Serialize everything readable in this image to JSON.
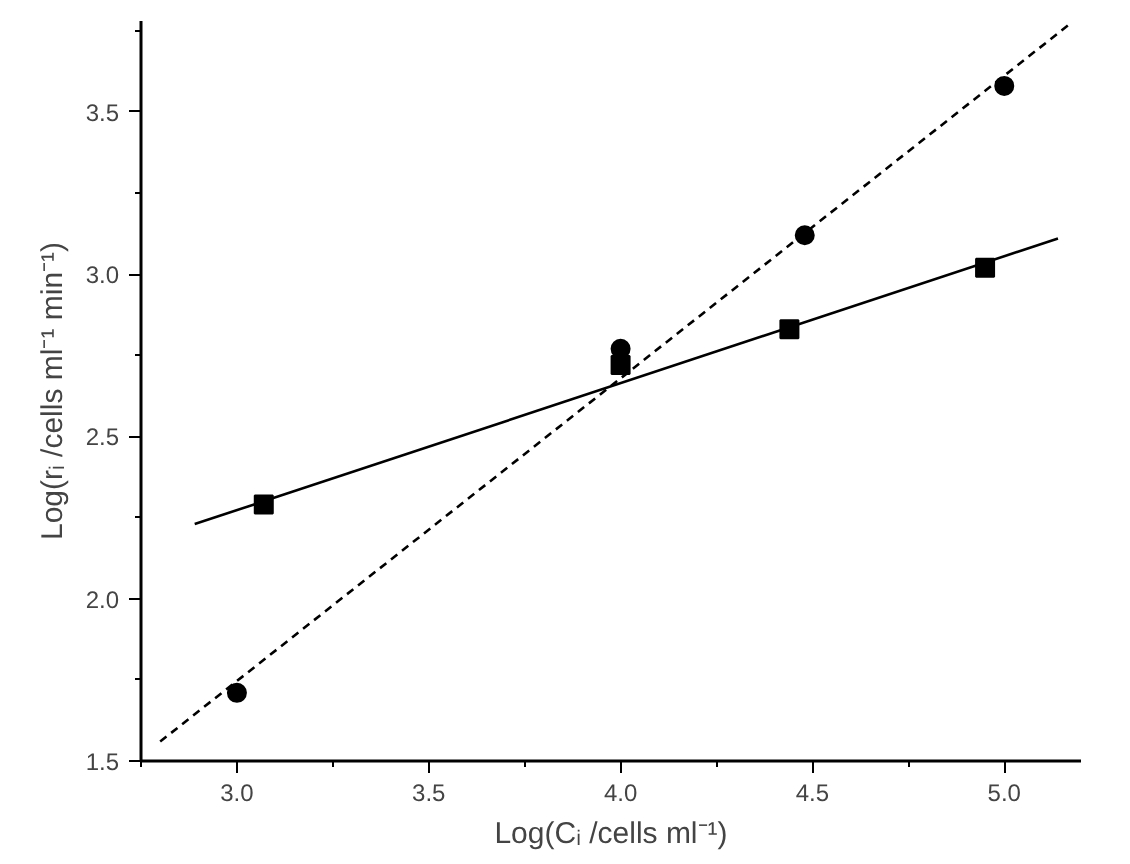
{
  "chart_data": {
    "type": "scatter",
    "xlabel": "Log(Cᵢ /cells ml⁻¹)",
    "ylabel": "Log(rᵢ /cells ml⁻¹ min⁻¹)",
    "xlim": [
      2.75,
      5.2
    ],
    "ylim": [
      1.5,
      3.78
    ],
    "xticks": [
      {
        "value": 3,
        "label": "3.0"
      },
      3.5,
      {
        "value": 4,
        "label": "4.0"
      },
      4.5,
      {
        "value": 5,
        "label": "5.0"
      }
    ],
    "yticks": [
      1.5,
      {
        "value": 2,
        "label": "2.0"
      },
      2.5,
      {
        "value": 3,
        "label": "3.0"
      },
      3.5
    ],
    "grid": false,
    "series": [
      {
        "marker": "square",
        "color": "#000000",
        "x": [
          3.07,
          4.0,
          4.44,
          4.95
        ],
        "values": [
          2.29,
          2.72,
          2.83,
          3.02
        ]
      },
      {
        "type": "scatter",
        "marker": "circle",
        "color": "#000000",
        "x": [
          3.0,
          4.0,
          4.48,
          5.0
        ],
        "values": [
          1.71,
          2.77,
          3.12,
          3.58
        ]
      },
      {
        "type": "line",
        "line_style": "solid",
        "color": "#000000",
        "x": [
          2.89,
          5.14
        ],
        "values": [
          2.23,
          3.11
        ]
      },
      {
        "type": "line",
        "line_style": "dashed",
        "color": "#000000",
        "x": [
          2.8,
          5.17
        ],
        "values": [
          1.56,
          3.77
        ]
      }
    ]
  }
}
